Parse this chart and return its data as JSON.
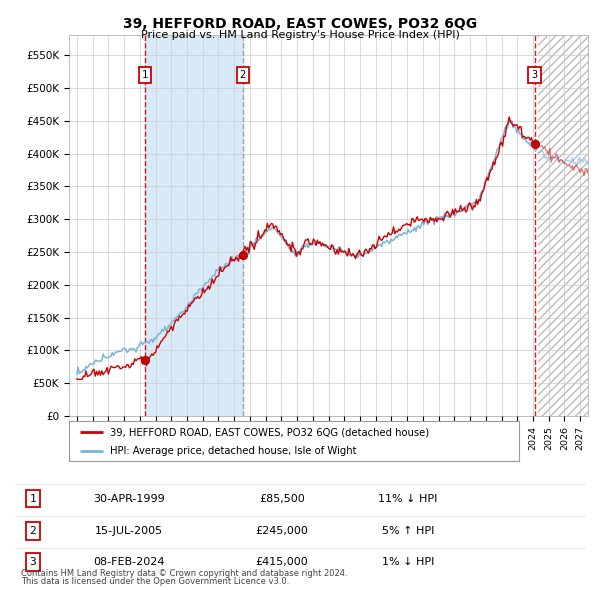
{
  "title": "39, HEFFORD ROAD, EAST COWES, PO32 6QG",
  "subtitle": "Price paid vs. HM Land Registry's House Price Index (HPI)",
  "legend_line1": "39, HEFFORD ROAD, EAST COWES, PO32 6QG (detached house)",
  "legend_line2": "HPI: Average price, detached house, Isle of Wight",
  "footnote1": "Contains HM Land Registry data © Crown copyright and database right 2024.",
  "footnote2": "This data is licensed under the Open Government Licence v3.0.",
  "sale_labels": [
    "1",
    "2",
    "3"
  ],
  "sale_dates_str": [
    "30-APR-1999",
    "15-JUL-2005",
    "08-FEB-2024"
  ],
  "sale_prices": [
    85500,
    245000,
    415000
  ],
  "sale_hpi_pcts": [
    "11% ↓ HPI",
    "5% ↑ HPI",
    "1% ↓ HPI"
  ],
  "sale_years": [
    1999.33,
    2005.54,
    2024.1
  ],
  "ylim": [
    0,
    580000
  ],
  "xlim_start": 1994.5,
  "xlim_end": 2027.5,
  "hpi_color": "#7ab4d8",
  "price_color": "#cc0000",
  "sale_dot_color": "#cc0000",
  "vline_color_red": "#cc0000",
  "vline_color_grey": "#999999",
  "shade_between_color": "#d8eaf7",
  "background_color": "#ffffff",
  "grid_color": "#cccccc",
  "ytick_labels": [
    "£0",
    "£50K",
    "£100K",
    "£150K",
    "£200K",
    "£250K",
    "£300K",
    "£350K",
    "£400K",
    "£450K",
    "£500K",
    "£550K"
  ],
  "ytick_values": [
    0,
    50000,
    100000,
    150000,
    200000,
    250000,
    300000,
    350000,
    400000,
    450000,
    500000,
    550000
  ],
  "xtick_years": [
    1995,
    1996,
    1997,
    1998,
    1999,
    2000,
    2001,
    2002,
    2003,
    2004,
    2005,
    2006,
    2007,
    2008,
    2009,
    2010,
    2011,
    2012,
    2013,
    2014,
    2015,
    2016,
    2017,
    2018,
    2019,
    2020,
    2021,
    2022,
    2023,
    2024,
    2025,
    2026,
    2027
  ]
}
